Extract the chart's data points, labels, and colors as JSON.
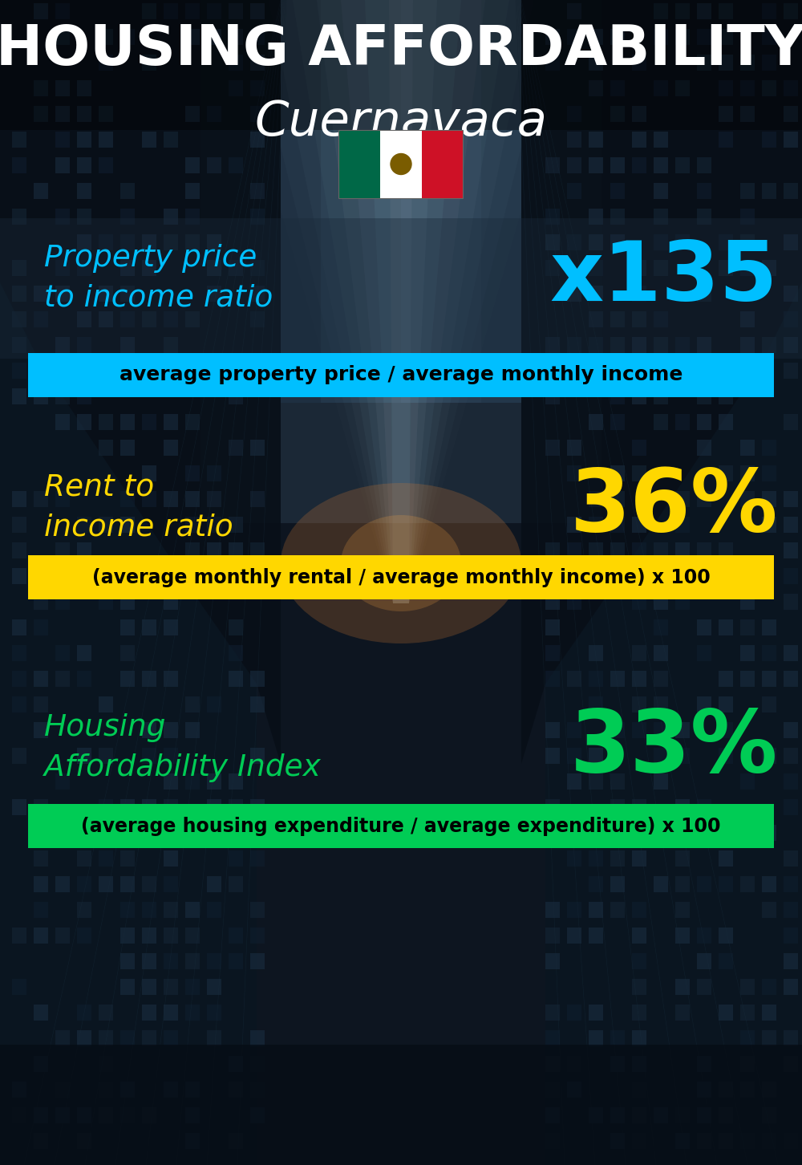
{
  "title_line1": "HOUSING AFFORDABILITY",
  "title_line2": "Cuernavaca",
  "bg_color": "#0d1b2a",
  "section1_label": "Property price\nto income ratio",
  "section1_value": "x135",
  "section1_label_color": "#00bfff",
  "section1_value_color": "#00bfff",
  "section1_sublabel": "average property price / average monthly income",
  "section1_sublabel_bg": "#00bfff",
  "section1_sublabel_color": "#000000",
  "section2_label": "Rent to\nincome ratio",
  "section2_value": "36%",
  "section2_label_color": "#ffd700",
  "section2_value_color": "#ffd700",
  "section2_sublabel": "(average monthly rental / average monthly income) x 100",
  "section2_sublabel_bg": "#ffd700",
  "section2_sublabel_color": "#000000",
  "section3_label": "Housing\nAffordability Index",
  "section3_value": "33%",
  "section3_label_color": "#00cc55",
  "section3_value_color": "#00cc55",
  "section3_sublabel": "(average housing expenditure / average expenditure) x 100",
  "section3_sublabel_bg": "#00cc55",
  "section3_sublabel_color": "#000000",
  "title_color": "#ffffff",
  "subtitle_color": "#ffffff"
}
